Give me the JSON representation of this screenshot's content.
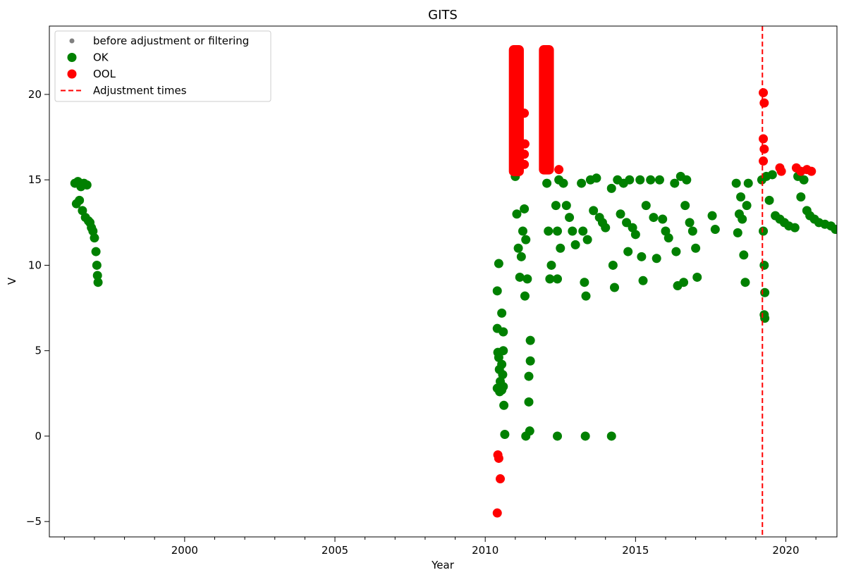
{
  "chart_data": {
    "type": "scatter",
    "title": "GITS",
    "xlabel": "Year",
    "ylabel": "V",
    "xlim": [
      1995.5,
      2021.7
    ],
    "ylim": [
      -5.9,
      24.0
    ],
    "xticks": [
      2000,
      2005,
      2010,
      2015,
      2020
    ],
    "yticks": [
      -5,
      0,
      5,
      10,
      15,
      20
    ],
    "grid": false,
    "legend": {
      "placement": "top-left",
      "entries": [
        {
          "key": "before",
          "label": "before adjustment or filtering",
          "color": "#808080",
          "marker": "small-dot"
        },
        {
          "key": "ok",
          "label": "OK",
          "color": "#008000",
          "marker": "dot"
        },
        {
          "key": "ool",
          "label": "OOL",
          "color": "#ff0000",
          "marker": "dot"
        },
        {
          "key": "adj",
          "label": "Adjustment times",
          "color": "#ff0000",
          "marker": "dashed-line"
        }
      ]
    },
    "adjustment_times": [
      2019.22
    ],
    "series": [
      {
        "key": "ok",
        "name": "OK",
        "color": "#008000",
        "points": [
          [
            1996.35,
            14.8
          ],
          [
            1996.4,
            13.6
          ],
          [
            1996.45,
            14.9
          ],
          [
            1996.5,
            13.8
          ],
          [
            1996.55,
            14.6
          ],
          [
            1996.6,
            13.2
          ],
          [
            1996.65,
            14.8
          ],
          [
            1996.7,
            12.8
          ],
          [
            1996.75,
            14.7
          ],
          [
            1996.8,
            12.6
          ],
          [
            1996.85,
            12.5
          ],
          [
            1996.9,
            12.2
          ],
          [
            1996.95,
            12.0
          ],
          [
            1997.0,
            11.6
          ],
          [
            1997.05,
            10.8
          ],
          [
            1997.08,
            10.0
          ],
          [
            1997.1,
            9.4
          ],
          [
            1997.12,
            9.0
          ],
          [
            2010.4,
            8.5
          ],
          [
            2010.45,
            10.1
          ],
          [
            2010.4,
            6.3
          ],
          [
            2010.42,
            4.9
          ],
          [
            2010.45,
            4.6
          ],
          [
            2010.47,
            3.9
          ],
          [
            2010.5,
            3.2
          ],
          [
            2010.4,
            2.8
          ],
          [
            2010.48,
            2.6
          ],
          [
            2010.55,
            7.2
          ],
          [
            2010.6,
            6.1
          ],
          [
            2010.6,
            5.0
          ],
          [
            2010.55,
            4.2
          ],
          [
            2010.58,
            3.6
          ],
          [
            2010.6,
            2.9
          ],
          [
            2010.62,
            1.8
          ],
          [
            2010.65,
            0.1
          ],
          [
            2010.55,
            2.7
          ],
          [
            2011.0,
            15.2
          ],
          [
            2011.05,
            13.0
          ],
          [
            2011.1,
            11.0
          ],
          [
            2011.15,
            9.3
          ],
          [
            2011.2,
            10.5
          ],
          [
            2011.25,
            12.0
          ],
          [
            2011.3,
            13.3
          ],
          [
            2011.32,
            8.2
          ],
          [
            2011.35,
            11.5
          ],
          [
            2011.4,
            9.2
          ],
          [
            2011.45,
            3.5
          ],
          [
            2011.5,
            4.4
          ],
          [
            2011.45,
            2.0
          ],
          [
            2011.5,
            5.6
          ],
          [
            2011.48,
            0.3
          ],
          [
            2011.35,
            0.0
          ],
          [
            2012.05,
            14.8
          ],
          [
            2012.1,
            12.0
          ],
          [
            2012.15,
            9.2
          ],
          [
            2012.2,
            10.0
          ],
          [
            2012.35,
            13.5
          ],
          [
            2012.4,
            12.0
          ],
          [
            2012.4,
            9.2
          ],
          [
            2012.45,
            15.0
          ],
          [
            2012.5,
            11.0
          ],
          [
            2012.6,
            14.8
          ],
          [
            2012.7,
            13.5
          ],
          [
            2012.8,
            12.8
          ],
          [
            2012.9,
            12.0
          ],
          [
            2013.0,
            11.2
          ],
          [
            2012.4,
            0.0
          ],
          [
            2013.2,
            14.8
          ],
          [
            2013.25,
            12.0
          ],
          [
            2013.3,
            9.0
          ],
          [
            2013.35,
            8.2
          ],
          [
            2013.4,
            11.5
          ],
          [
            2013.5,
            15.0
          ],
          [
            2013.6,
            13.2
          ],
          [
            2013.7,
            15.1
          ],
          [
            2013.8,
            12.8
          ],
          [
            2013.9,
            12.5
          ],
          [
            2014.0,
            12.2
          ],
          [
            2013.33,
            0.0
          ],
          [
            2014.2,
            14.5
          ],
          [
            2014.25,
            10.0
          ],
          [
            2014.3,
            8.7
          ],
          [
            2014.4,
            15.0
          ],
          [
            2014.5,
            13.0
          ],
          [
            2014.6,
            14.8
          ],
          [
            2014.7,
            12.5
          ],
          [
            2014.75,
            10.8
          ],
          [
            2014.8,
            15.0
          ],
          [
            2014.9,
            12.2
          ],
          [
            2015.0,
            11.8
          ],
          [
            2014.2,
            0.0
          ],
          [
            2015.15,
            15.0
          ],
          [
            2015.2,
            10.5
          ],
          [
            2015.25,
            9.1
          ],
          [
            2015.35,
            13.5
          ],
          [
            2015.5,
            15.0
          ],
          [
            2015.6,
            12.8
          ],
          [
            2015.7,
            10.4
          ],
          [
            2015.8,
            15.0
          ],
          [
            2015.9,
            12.7
          ],
          [
            2016.0,
            12.0
          ],
          [
            2016.1,
            11.6
          ],
          [
            2016.3,
            14.8
          ],
          [
            2016.35,
            10.8
          ],
          [
            2016.4,
            8.8
          ],
          [
            2016.5,
            15.2
          ],
          [
            2016.6,
            9.0
          ],
          [
            2016.65,
            13.5
          ],
          [
            2016.7,
            15.0
          ],
          [
            2016.8,
            12.5
          ],
          [
            2016.9,
            12.0
          ],
          [
            2017.0,
            11.0
          ],
          [
            2017.05,
            9.3
          ],
          [
            2017.55,
            12.9
          ],
          [
            2017.65,
            12.1
          ],
          [
            2018.35,
            14.8
          ],
          [
            2018.4,
            11.9
          ],
          [
            2018.45,
            13.0
          ],
          [
            2018.5,
            14.0
          ],
          [
            2018.55,
            12.7
          ],
          [
            2018.6,
            10.6
          ],
          [
            2018.65,
            9.0
          ],
          [
            2018.7,
            13.5
          ],
          [
            2018.75,
            14.8
          ],
          [
            2019.2,
            15.0
          ],
          [
            2019.25,
            12.0
          ],
          [
            2019.28,
            10.0
          ],
          [
            2019.3,
            8.4
          ],
          [
            2019.28,
            7.1
          ],
          [
            2019.3,
            6.9
          ],
          [
            2019.35,
            15.2
          ],
          [
            2019.45,
            13.8
          ],
          [
            2019.55,
            15.3
          ],
          [
            2019.65,
            12.9
          ],
          [
            2019.8,
            12.7
          ],
          [
            2019.95,
            12.5
          ],
          [
            2020.1,
            12.3
          ],
          [
            2020.3,
            12.2
          ],
          [
            2020.4,
            15.2
          ],
          [
            2020.5,
            14.0
          ],
          [
            2020.6,
            15.0
          ],
          [
            2020.7,
            13.2
          ],
          [
            2020.8,
            12.9
          ],
          [
            2020.95,
            12.7
          ],
          [
            2021.1,
            12.5
          ],
          [
            2021.3,
            12.4
          ],
          [
            2021.5,
            12.3
          ],
          [
            2021.65,
            12.1
          ]
        ]
      },
      {
        "key": "ool",
        "name": "OOL",
        "color": "#ff0000",
        "points": [
          [
            2010.42,
            -1.1
          ],
          [
            2010.45,
            -1.3
          ],
          [
            2010.5,
            -2.5
          ],
          [
            2010.4,
            -4.5
          ],
          [
            2011.3,
            18.9
          ],
          [
            2011.32,
            17.1
          ],
          [
            2011.3,
            16.5
          ],
          [
            2011.3,
            15.9
          ],
          [
            2012.45,
            15.6
          ],
          [
            2019.25,
            20.1
          ],
          [
            2019.28,
            19.5
          ],
          [
            2019.25,
            17.4
          ],
          [
            2019.28,
            16.8
          ],
          [
            2019.25,
            16.1
          ],
          [
            2019.8,
            15.7
          ],
          [
            2019.85,
            15.5
          ],
          [
            2020.35,
            15.7
          ],
          [
            2020.5,
            15.5
          ],
          [
            2020.7,
            15.6
          ],
          [
            2020.85,
            15.5
          ]
        ],
        "bands": [
          {
            "x": [
              2010.95,
              2011.12
            ],
            "y": [
              15.5,
              22.6
            ]
          },
          {
            "x": [
              2011.95,
              2012.12
            ],
            "y": [
              15.6,
              22.6
            ]
          }
        ]
      }
    ]
  }
}
